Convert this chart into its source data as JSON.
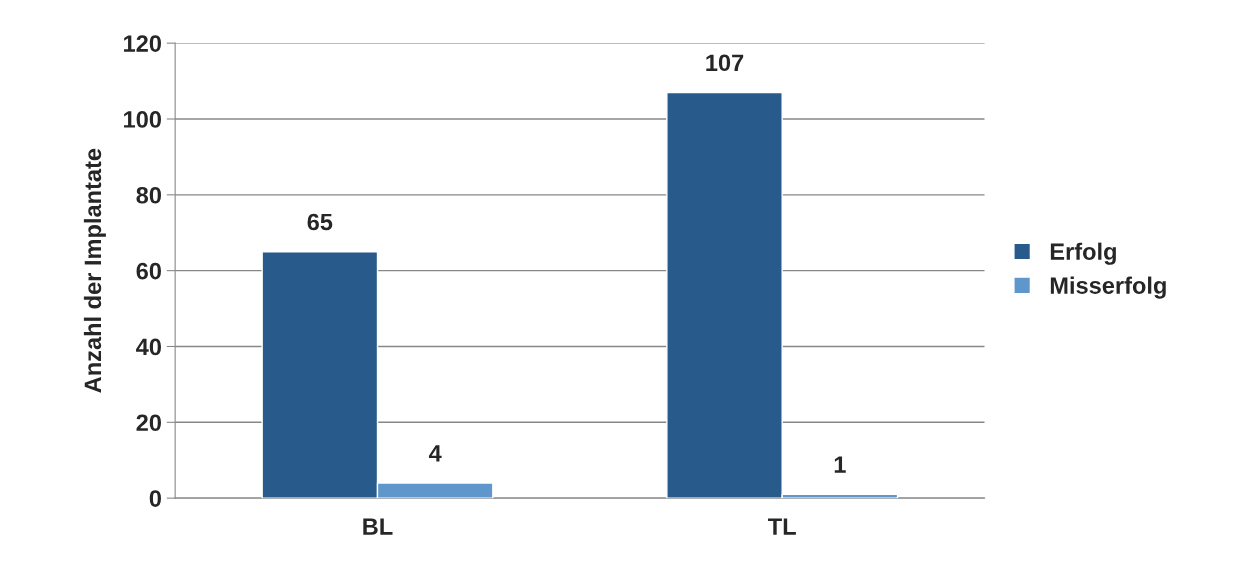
{
  "chart_data": {
    "type": "bar",
    "ylabel": "Anzahl der Implantate",
    "categories": [
      "BL",
      "TL"
    ],
    "series": [
      {
        "name": "Erfolg",
        "color": "#285b8c",
        "values": [
          65,
          107
        ]
      },
      {
        "name": "Misserfolg",
        "color": "#5f96cc",
        "values": [
          4,
          1
        ]
      }
    ],
    "ylim": [
      0,
      120
    ],
    "yticks": [
      0,
      20,
      40,
      60,
      80,
      100,
      120
    ],
    "grid": "y",
    "legend": "right",
    "data_labels": true
  }
}
